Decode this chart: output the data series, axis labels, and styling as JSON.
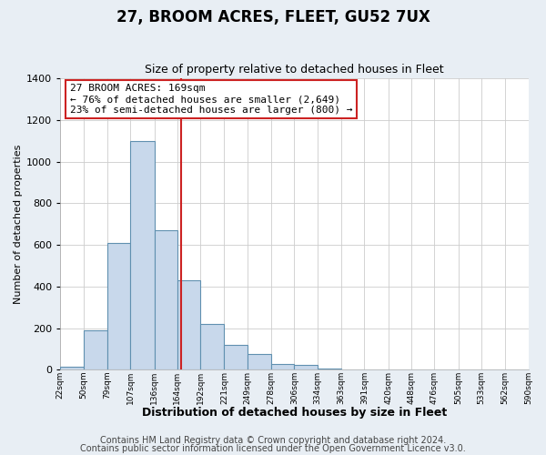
{
  "title": "27, BROOM ACRES, FLEET, GU52 7UX",
  "subtitle": "Size of property relative to detached houses in Fleet",
  "xlabel": "Distribution of detached houses by size in Fleet",
  "ylabel": "Number of detached properties",
  "bar_edges": [
    22,
    50,
    79,
    107,
    136,
    164,
    192,
    221,
    249,
    278,
    306,
    334,
    363,
    391,
    420,
    448,
    476,
    505,
    533,
    562,
    590
  ],
  "bar_heights": [
    15,
    190,
    610,
    1100,
    670,
    430,
    220,
    120,
    75,
    30,
    25,
    5,
    2,
    1,
    0,
    0,
    0,
    0,
    0,
    0
  ],
  "bar_color": "#c8d8eb",
  "bar_edgecolor": "#6090b0",
  "vline_x": 169,
  "vline_color": "#cc2222",
  "annotation_text": "27 BROOM ACRES: 169sqm\n← 76% of detached houses are smaller (2,649)\n23% of semi-detached houses are larger (800) →",
  "annotation_box_color": "#ffffff",
  "annotation_box_edgecolor": "#cc2222",
  "ylim": [
    0,
    1400
  ],
  "yticks": [
    0,
    200,
    400,
    600,
    800,
    1000,
    1200,
    1400
  ],
  "tick_labels": [
    "22sqm",
    "50sqm",
    "79sqm",
    "107sqm",
    "136sqm",
    "164sqm",
    "192sqm",
    "221sqm",
    "249sqm",
    "278sqm",
    "306sqm",
    "334sqm",
    "363sqm",
    "391sqm",
    "420sqm",
    "448sqm",
    "476sqm",
    "505sqm",
    "533sqm",
    "562sqm",
    "590sqm"
  ],
  "footer_line1": "Contains HM Land Registry data © Crown copyright and database right 2024.",
  "footer_line2": "Contains public sector information licensed under the Open Government Licence v3.0.",
  "bg_color": "#e8eef4",
  "plot_bg_color": "#ffffff",
  "annotation_fontsize": 8,
  "title_fontsize": 12,
  "subtitle_fontsize": 9,
  "xlabel_fontsize": 9,
  "ylabel_fontsize": 8,
  "footer_fontsize": 7,
  "grid_color": "#cccccc",
  "tick_label_fontsize": 6.5,
  "ytick_fontsize": 8
}
